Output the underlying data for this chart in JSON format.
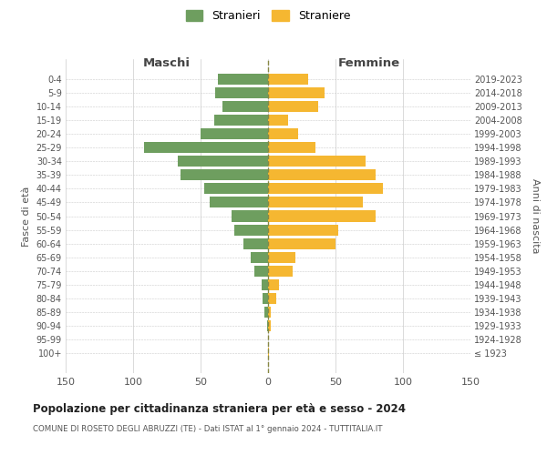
{
  "age_groups": [
    "100+",
    "95-99",
    "90-94",
    "85-89",
    "80-84",
    "75-79",
    "70-74",
    "65-69",
    "60-64",
    "55-59",
    "50-54",
    "45-49",
    "40-44",
    "35-39",
    "30-34",
    "25-29",
    "20-24",
    "15-19",
    "10-14",
    "5-9",
    "0-4"
  ],
  "birth_years": [
    "≤ 1923",
    "1924-1928",
    "1929-1933",
    "1934-1938",
    "1939-1943",
    "1944-1948",
    "1949-1953",
    "1954-1958",
    "1959-1963",
    "1964-1968",
    "1969-1973",
    "1974-1978",
    "1979-1983",
    "1984-1988",
    "1989-1993",
    "1994-1998",
    "1999-2003",
    "2004-2008",
    "2009-2013",
    "2014-2018",
    "2019-2023"
  ],
  "males": [
    0,
    0,
    1,
    3,
    4,
    5,
    10,
    13,
    18,
    25,
    27,
    43,
    47,
    65,
    67,
    92,
    50,
    40,
    34,
    39,
    37
  ],
  "females": [
    1,
    0,
    2,
    2,
    6,
    8,
    18,
    20,
    50,
    52,
    80,
    70,
    85,
    80,
    72,
    35,
    22,
    15,
    37,
    42,
    30
  ],
  "male_color": "#6e9e5f",
  "female_color": "#f5b731",
  "background_color": "#ffffff",
  "grid_color": "#cccccc",
  "title": "Popolazione per cittadinanza straniera per età e sesso - 2024",
  "subtitle": "COMUNE DI ROSETO DEGLI ABRUZZI (TE) - Dati ISTAT al 1° gennaio 2024 - TUTTITALIA.IT",
  "left_label": "Maschi",
  "right_label": "Femmine",
  "ylabel_left": "Fasce di età",
  "ylabel_right": "Anni di nascita",
  "legend_male": "Stranieri",
  "legend_female": "Straniere",
  "xlim": 150,
  "bar_height": 0.8
}
